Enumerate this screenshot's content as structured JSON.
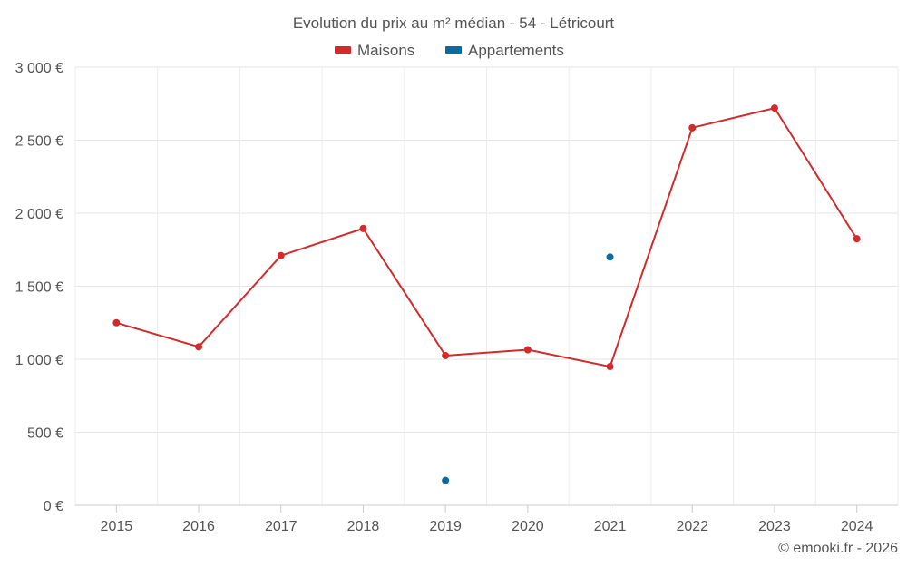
{
  "chart_data": {
    "type": "line",
    "title": "Evolution du prix au m² médian - 54 - Létricourt",
    "xlabel": "",
    "ylabel": "",
    "categories": [
      "2015",
      "2016",
      "2017",
      "2018",
      "2019",
      "2020",
      "2021",
      "2022",
      "2023",
      "2024"
    ],
    "ylim": [
      0,
      3000
    ],
    "y_ticks": [
      0,
      500,
      1000,
      1500,
      2000,
      2500,
      3000
    ],
    "y_tick_labels": [
      "0 €",
      "500 €",
      "1 000 €",
      "1 500 €",
      "2 000 €",
      "2 500 €",
      "3 000 €"
    ],
    "grid": true,
    "legend_position": "top-center",
    "series": [
      {
        "name": "Maisons",
        "color": "#d42a2a",
        "style": "line",
        "values": [
          1250,
          1085,
          1710,
          1895,
          1025,
          1065,
          950,
          2585,
          2720,
          1825
        ]
      },
      {
        "name": "Appartements",
        "color": "#0b6aa2",
        "style": "points",
        "values": [
          null,
          null,
          null,
          null,
          170,
          null,
          1700,
          null,
          null,
          null
        ]
      }
    ]
  },
  "footer": "© emooki.fr - 2026"
}
